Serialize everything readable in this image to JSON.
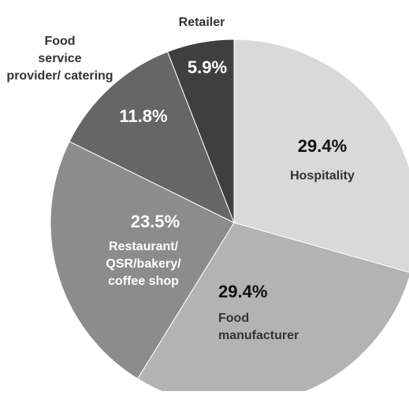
{
  "chart_data": {
    "type": "pie",
    "start_angle_deg": 0,
    "direction": "clockwise",
    "slices": [
      {
        "label": "Hospitality",
        "value": 29.4,
        "value_label": "29.4%",
        "color": "#d9d9d9",
        "text_color": "#111111",
        "label_color": "#333333",
        "label_placement": "inside"
      },
      {
        "label": "Food manufacturer",
        "value": 29.4,
        "value_label": "29.4%",
        "color": "#b3b3b3",
        "text_color": "#111111",
        "label_color": "#333333",
        "label_placement": "inside"
      },
      {
        "label": "Restaurant/ QSR/bakery/ coffee shop",
        "value": 23.5,
        "value_label": "23.5%",
        "color": "#8c8c8c",
        "text_color": "#ffffff",
        "label_color": "#ffffff",
        "label_placement": "inside"
      },
      {
        "label": "Food service provider/ catering",
        "value": 11.8,
        "value_label": "11.8%",
        "color": "#666666",
        "text_color": "#ffffff",
        "label_color": "#333333",
        "label_placement": "outside"
      },
      {
        "label": "Retailer",
        "value": 5.9,
        "value_label": "5.9%",
        "color": "#3f3f3f",
        "text_color": "#ffffff",
        "label_color": "#333333",
        "label_placement": "outside"
      }
    ]
  }
}
